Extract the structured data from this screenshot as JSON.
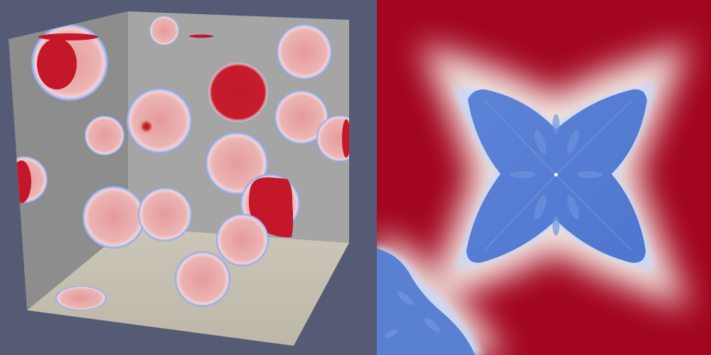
{
  "scene": {
    "colors": {
      "background": "#555b75",
      "wall_left": "#8e8e8e",
      "wall_back": "#a4a4a4",
      "floor": "#c3bdae",
      "solid_phase": "#c4182a",
      "solid_dark": "#a90d22",
      "liquid_phase": "#e89c9c",
      "interface": "#7f9fe8",
      "crystal_blue": "#5a7fd3",
      "crystal_edge": "#bcd0f0",
      "field_red": "#a3061f"
    },
    "left_view": {
      "description_key": "3d-particle-box"
    },
    "right_view": {
      "description_key": "dendrite-cross-section"
    }
  }
}
